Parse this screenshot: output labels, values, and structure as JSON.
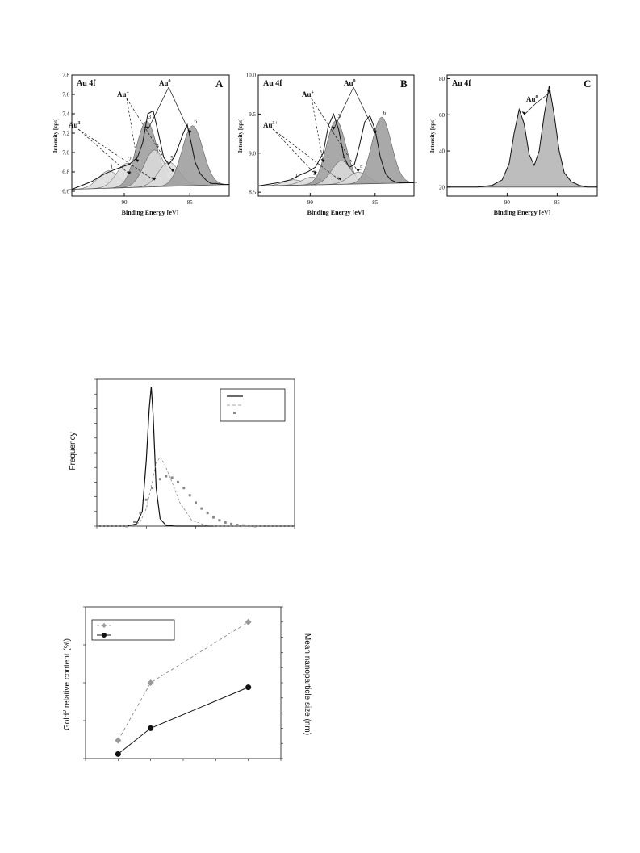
{
  "xps_panels": [
    {
      "id": "A",
      "corner_label": "Au 4f",
      "panel_letter": "A",
      "ylabel": "Intensity [cps]",
      "xlabel": "Binding Energy [eV]",
      "x_ticks": [
        "90",
        "85"
      ],
      "y_ticks": [
        "6.6",
        "6.8",
        "7.0",
        "7.2",
        "7.4",
        "7.6",
        "7.8"
      ],
      "species": [
        {
          "label": "Au",
          "sup": "3+"
        },
        {
          "label": "Au",
          "sup": "+"
        },
        {
          "label": "Au",
          "sup": "0"
        }
      ],
      "peak_numbers": [
        "1",
        "2",
        "3",
        "4",
        "5",
        "6"
      ]
    },
    {
      "id": "B",
      "corner_label": "Au 4f",
      "panel_letter": "B",
      "ylabel": "Intensity [cps]",
      "xlabel": "Binding Energy [eV]",
      "x_ticks": [
        "90",
        "85"
      ],
      "y_ticks": [
        "8.5",
        "9.0",
        "9.5",
        "10.0"
      ],
      "species": [
        {
          "label": "Au",
          "sup": "3+"
        },
        {
          "label": "Au",
          "sup": "+"
        },
        {
          "label": "Au",
          "sup": "0"
        }
      ],
      "peak_numbers": [
        "1",
        "2",
        "3",
        "4",
        "5",
        "6"
      ]
    },
    {
      "id": "C",
      "corner_label": "Au 4f",
      "panel_letter": "C",
      "ylabel": "Intensity [cps]",
      "xlabel": "Binding Energy [eV]",
      "x_ticks": [
        "90",
        "85"
      ],
      "y_ticks": [
        "20",
        "40",
        "60",
        "80"
      ],
      "species": [
        {
          "label": "Au",
          "sup": "0"
        }
      ],
      "peak_numbers": []
    }
  ],
  "freq_plot": {
    "ylabel": "Frequency"
  },
  "combo_plot": {
    "ylabel_left_main": "Gold",
    "ylabel_left_sup": "0",
    "ylabel_left_rest": " relative content (%)",
    "ylabel_right": "Mean nanoparticle size (nm)"
  },
  "colors": {
    "fill_dark": "#9a9a9a",
    "fill_light": "#dcdcdc",
    "series_gray": "#8a8a8a",
    "series_black": "#111111"
  },
  "chart_data": [
    {
      "type": "line",
      "panel": "A",
      "title": "",
      "xlabel": "Binding Energy [eV]",
      "ylabel": "Intensity [cps]",
      "xlim": [
        94,
        82
      ],
      "ylim": [
        6.55,
        7.8
      ],
      "axis_reversed": true,
      "series": [
        {
          "x": [
            94,
            92.5,
            91.5,
            90.8,
            90.2,
            89.6,
            89.0,
            88.6,
            88.2,
            87.8,
            87.4,
            87.0,
            86.6,
            86.2,
            85.9,
            85.5,
            85.2,
            84.9,
            84.6,
            84.2,
            83.8,
            83.4,
            83.0,
            82.5,
            82
          ],
          "y": [
            6.62,
            6.7,
            6.78,
            6.82,
            6.85,
            6.88,
            6.95,
            7.1,
            7.4,
            7.43,
            7.2,
            6.95,
            6.88,
            6.95,
            7.05,
            7.2,
            7.29,
            7.1,
            6.9,
            6.78,
            6.72,
            6.68,
            6.68,
            6.67,
            6.67
          ]
        }
      ],
      "components": [
        {
          "number": "1",
          "center": 91.2,
          "height": 0.18
        },
        {
          "number": "2",
          "center": 89.8,
          "height": 0.25
        },
        {
          "number": "3",
          "center": 88.3,
          "height": 0.68
        },
        {
          "number": "4",
          "center": 87.7,
          "height": 0.38
        },
        {
          "number": "5",
          "center": 86.6,
          "height": 0.25
        },
        {
          "number": "6",
          "center": 84.8,
          "height": 0.62
        }
      ]
    },
    {
      "type": "line",
      "panel": "B",
      "title": "",
      "xlabel": "Binding Energy [eV]",
      "ylabel": "Intensity [cps]",
      "xlim": [
        94,
        82
      ],
      "ylim": [
        8.45,
        10.0
      ],
      "axis_reversed": true,
      "series": [
        {
          "x": [
            94,
            92.5,
            91.5,
            90.8,
            90.2,
            89.6,
            89.0,
            88.6,
            88.2,
            87.8,
            87.4,
            87.0,
            86.6,
            86.2,
            85.8,
            85.4,
            85.0,
            84.6,
            84.2,
            83.8,
            83.4,
            83.0,
            82.5,
            82
          ],
          "y": [
            8.58,
            8.62,
            8.66,
            8.72,
            8.76,
            8.82,
            9.0,
            9.35,
            9.5,
            9.3,
            8.95,
            8.82,
            8.85,
            9.1,
            9.4,
            9.48,
            9.3,
            8.95,
            8.74,
            8.66,
            8.63,
            8.62,
            8.62,
            8.62
          ]
        }
      ],
      "components": [
        {
          "number": "1",
          "center": 91.3,
          "height": 0.07
        },
        {
          "number": "2",
          "center": 89.9,
          "height": 0.1
        },
        {
          "number": "3",
          "center": 88.0,
          "height": 0.82
        },
        {
          "number": "4",
          "center": 87.6,
          "height": 0.3
        },
        {
          "number": "5",
          "center": 86.3,
          "height": 0.15
        },
        {
          "number": "6",
          "center": 84.5,
          "height": 0.85
        }
      ]
    },
    {
      "type": "line",
      "panel": "C",
      "title": "",
      "xlabel": "Binding Energy [eV]",
      "ylabel": "Intensity [cps]",
      "xlim": [
        96,
        81
      ],
      "ylim": [
        15,
        82
      ],
      "axis_reversed": true,
      "series": [
        {
          "x": [
            96,
            93,
            91.5,
            90.5,
            89.8,
            89.3,
            88.8,
            88.3,
            87.8,
            87.3,
            86.8,
            86.3,
            85.8,
            85.3,
            84.8,
            84.3,
            83.6,
            82.8,
            82,
            81
          ],
          "y": [
            20,
            20,
            21,
            24,
            33,
            50,
            63,
            55,
            38,
            32,
            40,
            60,
            76,
            60,
            40,
            28,
            23,
            21,
            20,
            20
          ]
        }
      ]
    },
    {
      "type": "line",
      "panel": "frequency",
      "title": "",
      "xlabel": "",
      "ylabel": "Frequency",
      "xlim": [
        0,
        10
      ],
      "ylim": [
        0,
        10
      ],
      "series": [
        {
          "x": [
            0,
            1.5,
            2.0,
            2.3,
            2.5,
            2.65,
            2.75,
            2.85,
            3.0,
            3.2,
            3.5,
            4,
            10
          ],
          "y": [
            0,
            0,
            0.15,
            1.0,
            4.5,
            8.0,
            9.5,
            7.5,
            2.6,
            0.5,
            0.05,
            0,
            0
          ]
        },
        {
          "x": [
            0,
            1.8,
            2.2,
            2.5,
            2.8,
            3.0,
            3.2,
            3.4,
            3.8,
            4.2,
            4.8,
            5.5,
            6.0,
            10
          ],
          "y": [
            0,
            0,
            0.3,
            1.2,
            3.0,
            4.3,
            4.7,
            4.3,
            3.0,
            1.6,
            0.4,
            0.05,
            0,
            0
          ]
        },
        {
          "x": [
            1.5,
            1.9,
            2.2,
            2.5,
            2.8,
            3.2,
            3.5,
            3.8,
            4.1,
            4.4,
            4.7,
            5.0,
            5.3,
            5.6,
            5.9,
            6.2,
            6.5,
            6.8,
            7.1,
            7.4,
            7.7,
            8.0
          ],
          "y": [
            0,
            0.3,
            0.9,
            1.8,
            2.6,
            3.2,
            3.4,
            3.3,
            3.0,
            2.6,
            2.1,
            1.6,
            1.2,
            0.9,
            0.6,
            0.4,
            0.25,
            0.15,
            0.08,
            0.04,
            0.02,
            0
          ]
        }
      ]
    },
    {
      "type": "line",
      "panel": "gold-content-vs-size",
      "title": "",
      "xlabel": "",
      "ylabel": "Gold0 relative content (%)",
      "y2label": "Mean nanoparticle size (nm)",
      "xlim": [
        0,
        6
      ],
      "ylim": [
        0,
        10
      ],
      "series": [
        {
          "x": [
            1,
            2,
            5
          ],
          "y": [
            1.2,
            5.0,
            9.0
          ]
        },
        {
          "x": [
            1,
            2,
            5
          ],
          "y": [
            0.3,
            2.0,
            4.7
          ]
        }
      ]
    }
  ]
}
